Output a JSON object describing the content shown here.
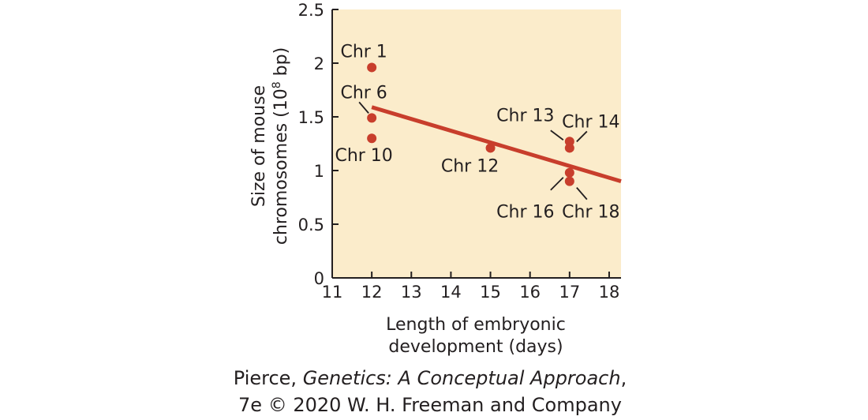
{
  "chart_data": {
    "type": "scatter",
    "xlabel": [
      "Length of embryonic",
      "development (days)"
    ],
    "ylabel": [
      "Size of mouse",
      "chromosomes (10",
      "8",
      " bp)"
    ],
    "xlim": [
      11,
      18.3
    ],
    "ylim": [
      0,
      2.5
    ],
    "xticks": [
      "11",
      "12",
      "13",
      "14",
      "15",
      "16",
      "17",
      "18"
    ],
    "yticks": [
      "0",
      "0.5",
      "1",
      "1.5",
      "2",
      "2.5"
    ],
    "colors": {
      "background": "#fbeccb",
      "points": "#c83e2c",
      "axis": "#231f20"
    },
    "points": [
      {
        "x": 12,
        "y": 1.96,
        "label": "Chr 1"
      },
      {
        "x": 12,
        "y": 1.49,
        "label": "Chr 6"
      },
      {
        "x": 12,
        "y": 1.3,
        "label": "Chr 10"
      },
      {
        "x": 15,
        "y": 1.21,
        "label": "Chr 12"
      },
      {
        "x": 17,
        "y": 1.27,
        "label": "Chr 13"
      },
      {
        "x": 17,
        "y": 1.21,
        "label": "Chr 14"
      },
      {
        "x": 17,
        "y": 0.98,
        "label": "Chr 16"
      },
      {
        "x": 17,
        "y": 0.9,
        "label": "Chr 18"
      }
    ],
    "trendline": {
      "x": [
        12,
        18.3
      ],
      "y": [
        1.59,
        0.9
      ]
    },
    "grid": false
  },
  "credit": {
    "line1_prefix": "Pierce, ",
    "line1_title": "Genetics: A Conceptual Approach",
    "line1_suffix": ",",
    "line2": "7e © 2020 W. H. Freeman and Company"
  }
}
